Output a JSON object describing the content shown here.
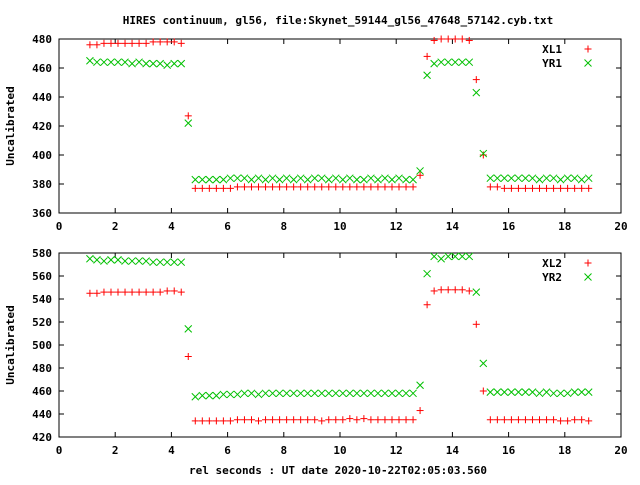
{
  "title": "HIRES continuum, gl56, file:Skynet_59144_gl56_47648_57142.cyb.txt",
  "xlabel": "rel seconds : UT date 2020-10-22T02:05:03.560",
  "colors": {
    "red": "#ff0000",
    "green": "#00c000",
    "axis": "#000000"
  },
  "chart_data": [
    {
      "type": "scatter",
      "title": "HIRES continuum, gl56, file:Skynet_59144_gl56_47648_57142.cyb.txt",
      "xlabel": "",
      "ylabel": "Uncalibrated",
      "xlim": [
        0,
        20
      ],
      "ylim": [
        360,
        480
      ],
      "xticks": [
        "0",
        "2",
        "4",
        "6",
        "8",
        "10",
        "12",
        "14",
        "16",
        "18",
        "20"
      ],
      "yticks": [
        "360",
        "380",
        "400",
        "420",
        "440",
        "460",
        "480"
      ],
      "legend_position": "top-right",
      "grid": false,
      "series": [
        {
          "name": "XL1",
          "marker": "plus",
          "color": "#ff0000",
          "x": [
            1.1,
            1.35,
            1.6,
            1.85,
            2.1,
            2.35,
            2.6,
            2.85,
            3.1,
            3.35,
            3.6,
            3.85,
            4.1,
            4.35,
            4.6,
            4.85,
            5.1,
            5.35,
            5.6,
            5.85,
            6.1,
            6.35,
            6.6,
            6.85,
            7.1,
            7.35,
            7.6,
            7.85,
            8.1,
            8.35,
            8.6,
            8.85,
            9.1,
            9.35,
            9.6,
            9.85,
            10.1,
            10.35,
            10.6,
            10.85,
            11.1,
            11.35,
            11.6,
            11.85,
            12.1,
            12.35,
            12.6,
            12.85,
            13.1,
            13.35,
            13.6,
            13.85,
            14.1,
            14.35,
            14.6,
            14.85,
            15.1,
            15.35,
            15.6,
            15.85,
            16.1,
            16.35,
            16.6,
            16.85,
            17.1,
            17.35,
            17.6,
            17.85,
            18.1,
            18.35,
            18.6,
            18.85
          ],
          "y": [
            476,
            476,
            477,
            477,
            477,
            477,
            477,
            477,
            477,
            478,
            478,
            478,
            478,
            477,
            427,
            377,
            377,
            377,
            377,
            377,
            377,
            378,
            378,
            378,
            378,
            378,
            378,
            378,
            378,
            378,
            378,
            378,
            378,
            378,
            378,
            378,
            378,
            378,
            378,
            378,
            378,
            378,
            378,
            378,
            378,
            378,
            378,
            386,
            468,
            479,
            480,
            480,
            480,
            480,
            479,
            452,
            400,
            378,
            378,
            377,
            377,
            377,
            377,
            377,
            377,
            377,
            377,
            377,
            377,
            377,
            377,
            377
          ]
        },
        {
          "name": "YR1",
          "marker": "cross",
          "color": "#00c000",
          "x": [
            1.1,
            1.35,
            1.6,
            1.85,
            2.1,
            2.35,
            2.6,
            2.85,
            3.1,
            3.35,
            3.6,
            3.85,
            4.1,
            4.35,
            4.6,
            4.85,
            5.1,
            5.35,
            5.6,
            5.85,
            6.1,
            6.35,
            6.6,
            6.85,
            7.1,
            7.35,
            7.6,
            7.85,
            8.1,
            8.35,
            8.6,
            8.85,
            9.1,
            9.35,
            9.6,
            9.85,
            10.1,
            10.35,
            10.6,
            10.85,
            11.1,
            11.35,
            11.6,
            11.85,
            12.1,
            12.35,
            12.6,
            12.85,
            13.1,
            13.35,
            13.6,
            13.85,
            14.1,
            14.35,
            14.6,
            14.85,
            15.1,
            15.35,
            15.6,
            15.85,
            16.1,
            16.35,
            16.6,
            16.85,
            17.1,
            17.35,
            17.6,
            17.85,
            18.1,
            18.35,
            18.6,
            18.85
          ],
          "y": [
            465,
            464,
            464,
            464,
            464,
            464,
            463,
            464,
            463,
            463,
            463,
            462,
            463,
            463,
            422,
            383,
            383,
            383,
            383,
            383,
            384,
            384,
            384,
            383,
            384,
            383,
            384,
            383,
            384,
            383,
            384,
            383,
            384,
            384,
            383,
            384,
            383,
            384,
            383,
            383,
            384,
            383,
            384,
            383,
            384,
            383,
            383,
            389,
            455,
            463,
            464,
            464,
            464,
            464,
            464,
            443,
            401,
            384,
            384,
            384,
            384,
            384,
            384,
            384,
            383,
            384,
            384,
            383,
            384,
            384,
            383,
            384
          ]
        }
      ]
    },
    {
      "type": "scatter",
      "xlabel": "rel seconds : UT date 2020-10-22T02:05:03.560",
      "ylabel": "Uncalibrated",
      "xlim": [
        0,
        20
      ],
      "ylim": [
        420,
        580
      ],
      "xticks": [
        "0",
        "2",
        "4",
        "6",
        "8",
        "10",
        "12",
        "14",
        "16",
        "18",
        "20"
      ],
      "yticks": [
        "420",
        "440",
        "460",
        "480",
        "500",
        "520",
        "540",
        "560",
        "580"
      ],
      "legend_position": "top-right",
      "grid": false,
      "series": [
        {
          "name": "XL2",
          "marker": "plus",
          "color": "#ff0000",
          "x": [
            1.1,
            1.35,
            1.6,
            1.85,
            2.1,
            2.35,
            2.6,
            2.85,
            3.1,
            3.35,
            3.6,
            3.85,
            4.1,
            4.35,
            4.6,
            4.85,
            5.1,
            5.35,
            5.6,
            5.85,
            6.1,
            6.35,
            6.6,
            6.85,
            7.1,
            7.35,
            7.6,
            7.85,
            8.1,
            8.35,
            8.6,
            8.85,
            9.1,
            9.35,
            9.6,
            9.85,
            10.1,
            10.35,
            10.6,
            10.85,
            11.1,
            11.35,
            11.6,
            11.85,
            12.1,
            12.35,
            12.6,
            12.85,
            13.1,
            13.35,
            13.6,
            13.85,
            14.1,
            14.35,
            14.6,
            14.85,
            15.1,
            15.35,
            15.6,
            15.85,
            16.1,
            16.35,
            16.6,
            16.85,
            17.1,
            17.35,
            17.6,
            17.85,
            18.1,
            18.35,
            18.6,
            18.85
          ],
          "y": [
            545,
            545,
            546,
            546,
            546,
            546,
            546,
            546,
            546,
            546,
            546,
            547,
            547,
            546,
            490,
            434,
            434,
            434,
            434,
            434,
            434,
            435,
            435,
            435,
            434,
            435,
            435,
            435,
            435,
            435,
            435,
            435,
            435,
            434,
            435,
            435,
            435,
            436,
            435,
            436,
            435,
            435,
            435,
            435,
            435,
            435,
            435,
            443,
            535,
            547,
            548,
            548,
            548,
            548,
            547,
            518,
            460,
            435,
            435,
            435,
            435,
            435,
            435,
            435,
            435,
            435,
            435,
            434,
            434,
            435,
            435,
            434
          ]
        },
        {
          "name": "YR2",
          "marker": "cross",
          "color": "#00c000",
          "x": [
            1.1,
            1.35,
            1.6,
            1.85,
            2.1,
            2.35,
            2.6,
            2.85,
            3.1,
            3.35,
            3.6,
            3.85,
            4.1,
            4.35,
            4.6,
            4.85,
            5.1,
            5.35,
            5.6,
            5.85,
            6.1,
            6.35,
            6.6,
            6.85,
            7.1,
            7.35,
            7.6,
            7.85,
            8.1,
            8.35,
            8.6,
            8.85,
            9.1,
            9.35,
            9.6,
            9.85,
            10.1,
            10.35,
            10.6,
            10.85,
            11.1,
            11.35,
            11.6,
            11.85,
            12.1,
            12.35,
            12.6,
            12.85,
            13.1,
            13.35,
            13.6,
            13.85,
            14.1,
            14.35,
            14.6,
            14.85,
            15.1,
            15.35,
            15.6,
            15.85,
            16.1,
            16.35,
            16.6,
            16.85,
            17.1,
            17.35,
            17.6,
            17.85,
            18.1,
            18.35,
            18.6,
            18.85
          ],
          "y": [
            575,
            574,
            573,
            574,
            574,
            573,
            573,
            573,
            573,
            572,
            572,
            572,
            572,
            572,
            514,
            455,
            456,
            456,
            456,
            457,
            457,
            457,
            458,
            458,
            457,
            458,
            458,
            458,
            458,
            458,
            458,
            458,
            458,
            458,
            458,
            458,
            458,
            458,
            458,
            458,
            458,
            458,
            458,
            458,
            458,
            458,
            458,
            465,
            562,
            577,
            575,
            577,
            577,
            577,
            577,
            546,
            484,
            459,
            459,
            459,
            459,
            459,
            459,
            459,
            458,
            459,
            458,
            458,
            458,
            459,
            459,
            459
          ]
        }
      ]
    }
  ]
}
